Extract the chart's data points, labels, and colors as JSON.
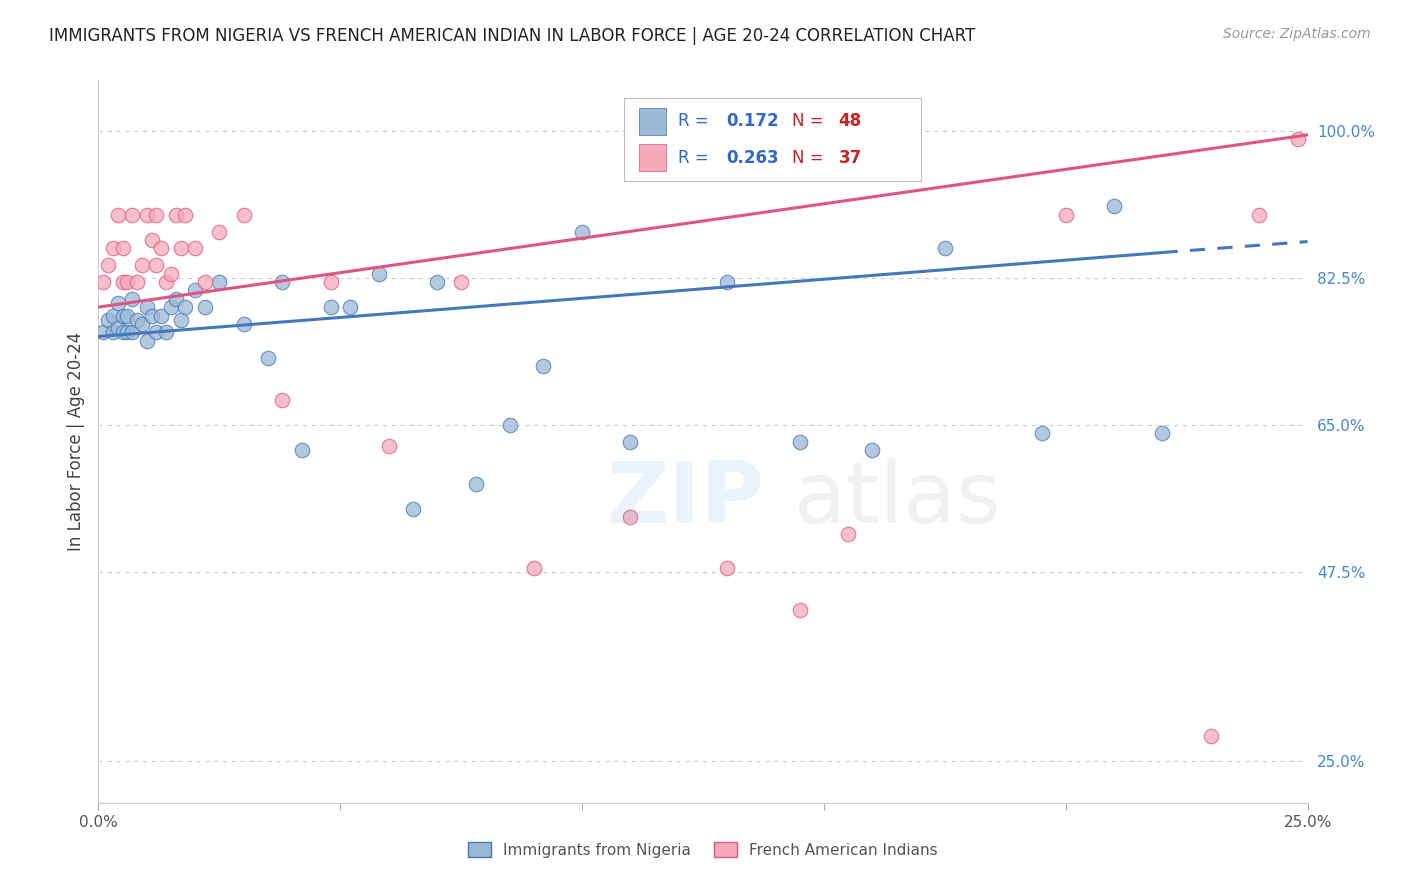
{
  "title": "IMMIGRANTS FROM NIGERIA VS FRENCH AMERICAN INDIAN IN LABOR FORCE | AGE 20-24 CORRELATION CHART",
  "source": "Source: ZipAtlas.com",
  "ylabel": "In Labor Force | Age 20-24",
  "x_min": 0.0,
  "x_max": 0.25,
  "y_min": 0.2,
  "y_max": 1.06,
  "y_ticks": [
    0.25,
    0.475,
    0.65,
    0.825,
    1.0
  ],
  "y_tick_labels_right": [
    "25.0%",
    "47.5%",
    "65.0%",
    "82.5%",
    "100.0%"
  ],
  "watermark": "ZIPatlas",
  "legend_label1": "Immigrants from Nigeria",
  "legend_label2": "French American Indians",
  "blue_color": "#9BB8D4",
  "blue_line_color": "#4477BB",
  "pink_color": "#F4AABB",
  "pink_line_color": "#E05580",
  "blue_x": [
    0.001,
    0.002,
    0.003,
    0.003,
    0.004,
    0.004,
    0.005,
    0.005,
    0.006,
    0.006,
    0.007,
    0.007,
    0.008,
    0.009,
    0.01,
    0.01,
    0.011,
    0.012,
    0.013,
    0.014,
    0.015,
    0.016,
    0.017,
    0.018,
    0.02,
    0.022,
    0.025,
    0.03,
    0.035,
    0.038,
    0.042,
    0.048,
    0.052,
    0.058,
    0.065,
    0.07,
    0.078,
    0.085,
    0.092,
    0.1,
    0.11,
    0.13,
    0.145,
    0.16,
    0.175,
    0.195,
    0.21,
    0.22
  ],
  "blue_y": [
    0.76,
    0.775,
    0.76,
    0.78,
    0.765,
    0.795,
    0.76,
    0.78,
    0.76,
    0.78,
    0.76,
    0.8,
    0.775,
    0.77,
    0.75,
    0.79,
    0.78,
    0.76,
    0.78,
    0.76,
    0.79,
    0.8,
    0.775,
    0.79,
    0.81,
    0.79,
    0.82,
    0.77,
    0.73,
    0.82,
    0.62,
    0.79,
    0.79,
    0.83,
    0.55,
    0.82,
    0.58,
    0.65,
    0.72,
    0.88,
    0.63,
    0.82,
    0.63,
    0.62,
    0.86,
    0.64,
    0.91,
    0.64
  ],
  "pink_x": [
    0.001,
    0.002,
    0.003,
    0.004,
    0.005,
    0.005,
    0.006,
    0.007,
    0.008,
    0.009,
    0.01,
    0.011,
    0.012,
    0.012,
    0.013,
    0.014,
    0.015,
    0.016,
    0.017,
    0.018,
    0.02,
    0.022,
    0.025,
    0.03,
    0.038,
    0.048,
    0.06,
    0.075,
    0.09,
    0.11,
    0.13,
    0.145,
    0.155,
    0.2,
    0.23,
    0.24,
    0.248
  ],
  "pink_y": [
    0.82,
    0.84,
    0.86,
    0.9,
    0.82,
    0.86,
    0.82,
    0.9,
    0.82,
    0.84,
    0.9,
    0.87,
    0.84,
    0.9,
    0.86,
    0.82,
    0.83,
    0.9,
    0.86,
    0.9,
    0.86,
    0.82,
    0.88,
    0.9,
    0.68,
    0.82,
    0.625,
    0.82,
    0.48,
    0.54,
    0.48,
    0.43,
    0.52,
    0.9,
    0.28,
    0.9,
    0.99
  ]
}
